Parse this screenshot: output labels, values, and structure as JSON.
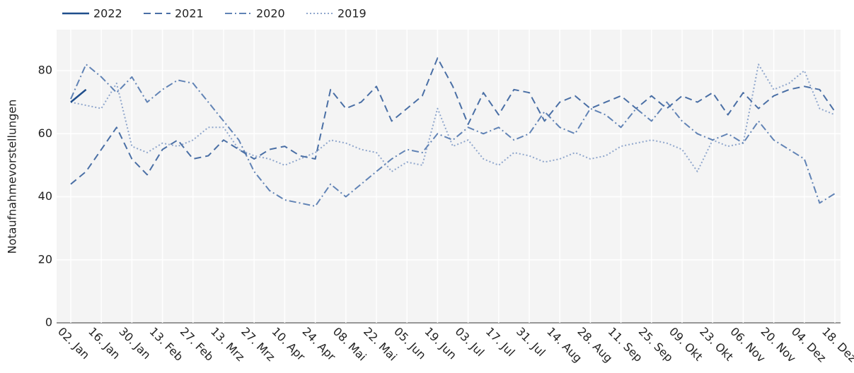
{
  "chart_data": {
    "type": "line",
    "y_label": "Notaufnahmevorstellungen",
    "legend": "top-left",
    "grid": true,
    "ylim": [
      0,
      93
    ],
    "yticks": [
      0,
      20,
      40,
      60,
      80
    ],
    "categories": [
      "02. Jan",
      null,
      "16. Jan",
      null,
      "30. Jan",
      null,
      "13. Feb",
      null,
      "27. Feb",
      null,
      "13. Mrz",
      null,
      "27. Mrz",
      null,
      "10. Apr",
      null,
      "24. Apr",
      null,
      "08. Mai",
      null,
      "22. Mai",
      null,
      "05. Jun",
      null,
      "19. Jun",
      null,
      "03. Jul",
      null,
      "17. Jul",
      null,
      "31. Jul",
      null,
      "14. Aug",
      null,
      "28. Aug",
      null,
      "11. Sep",
      null,
      "25. Sep",
      null,
      "09. Okt",
      null,
      "23. Okt",
      null,
      "06. Nov",
      null,
      "20. Nov",
      null,
      "04. Dez",
      null,
      "18. Dez"
    ],
    "series": [
      {
        "name": "2022",
        "color": "#1f4e8c",
        "line_style": "solid",
        "values": [
          70,
          74,
          null,
          null,
          null,
          null,
          null,
          null,
          null,
          null,
          null,
          null,
          null,
          null,
          null,
          null,
          null,
          null,
          null,
          null,
          null,
          null,
          null,
          null,
          null,
          null,
          null,
          null,
          null,
          null,
          null,
          null,
          null,
          null,
          null,
          null,
          null,
          null,
          null,
          null,
          null,
          null,
          null,
          null,
          null,
          null,
          null,
          null,
          null,
          null,
          null
        ]
      },
      {
        "name": "2021",
        "color": "#4a6fa5",
        "line_style": "dashed",
        "values": [
          44,
          48,
          55,
          62,
          52,
          47,
          55,
          58,
          52,
          53,
          58,
          55,
          52,
          55,
          56,
          53,
          52,
          74,
          68,
          70,
          75,
          64,
          68,
          72,
          84,
          75,
          63,
          73,
          66,
          74,
          73,
          64,
          70,
          72,
          68,
          70,
          72,
          68,
          72,
          68,
          72,
          70,
          73,
          66,
          73,
          68,
          72,
          74,
          75,
          74,
          67
        ]
      },
      {
        "name": "2020",
        "color": "#6183b5",
        "line_style": "dashdot",
        "values": [
          71,
          82,
          78,
          73,
          78,
          70,
          74,
          77,
          76,
          70,
          64,
          58,
          48,
          42,
          39,
          38,
          37,
          44,
          40,
          44,
          48,
          52,
          55,
          54,
          60,
          58,
          62,
          60,
          62,
          58,
          60,
          67,
          62,
          60,
          68,
          66,
          62,
          68,
          64,
          70,
          64,
          60,
          58,
          60,
          57,
          64,
          58,
          55,
          52,
          38,
          41
        ]
      },
      {
        "name": "2019",
        "color": "#8fa6cc",
        "line_style": "dotted",
        "values": [
          70,
          69,
          68,
          76,
          56,
          54,
          57,
          56,
          58,
          62,
          62,
          55,
          53,
          52,
          50,
          52,
          54,
          58,
          57,
          55,
          54,
          48,
          51,
          50,
          68,
          56,
          58,
          52,
          50,
          54,
          53,
          51,
          52,
          54,
          52,
          53,
          56,
          57,
          58,
          57,
          55,
          48,
          58,
          56,
          57,
          82,
          74,
          76,
          80,
          68,
          66
        ]
      }
    ]
  }
}
